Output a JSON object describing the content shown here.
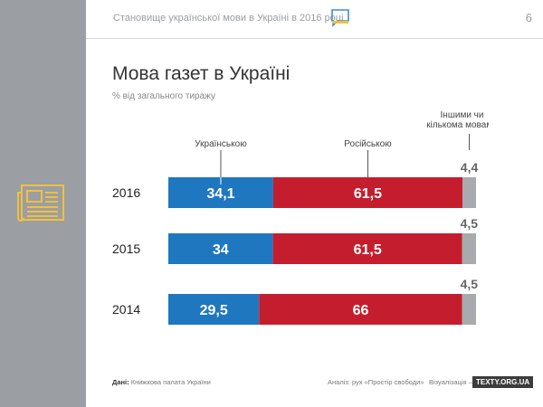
{
  "header": {
    "title": "Становище української мови в Україні в 2016 році",
    "page": "6"
  },
  "title": "Мова газет в Україні",
  "subtitle": "% від загального тиражу",
  "footer": {
    "source_label": "Дані:",
    "source": "Книжкова палата України",
    "analysis": "Аналіз: рух «Простір свободи»",
    "viz": "Візуалізація —",
    "brand": "TEXTY.ORG.UA"
  },
  "colors": {
    "ukrainian": "#1f77c0",
    "russian": "#c41e2e",
    "other": "#a8aaad",
    "sidebar": "#9b9ea2",
    "accent": "#f0c040"
  },
  "chart_data": {
    "type": "bar",
    "orientation": "horizontal",
    "stacked": true,
    "categories": [
      "2016",
      "2015",
      "2014"
    ],
    "series": [
      {
        "name": "Українською",
        "values": [
          34.1,
          34,
          29.5
        ]
      },
      {
        "name": "Російською",
        "values": [
          61.5,
          61.5,
          66
        ]
      },
      {
        "name": "Іншими чи кількома мовами",
        "values": [
          4.4,
          4.5,
          4.5
        ]
      }
    ],
    "data_labels": [
      [
        "34,1",
        "34",
        "29,5"
      ],
      [
        "61,5",
        "61,5",
        "66"
      ],
      [
        "4,4",
        "4,5",
        "4,5"
      ]
    ],
    "xlim": [
      0,
      100
    ]
  }
}
